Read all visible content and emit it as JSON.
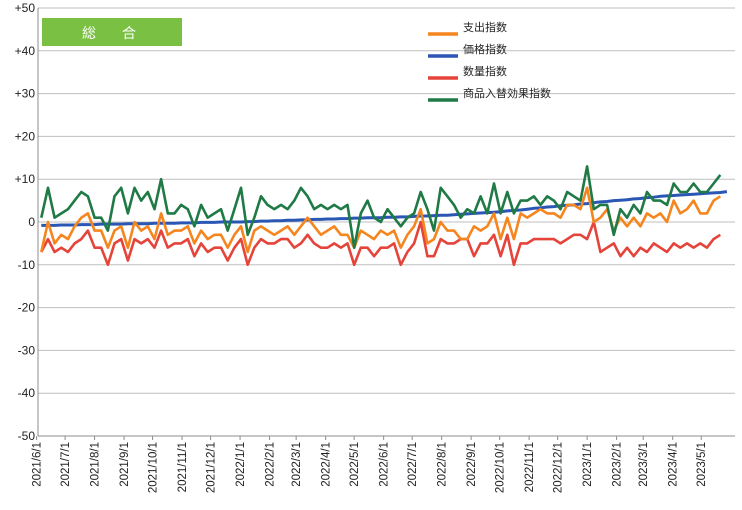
{
  "badge": {
    "label": "総　合",
    "color": "#7ac143"
  },
  "chart_data": {
    "type": "line",
    "ylim": [
      -50,
      50
    ],
    "yticks": [
      -50,
      -40,
      -30,
      -20,
      -10,
      0,
      10,
      20,
      30,
      40,
      50
    ],
    "ytick_labels": [
      "-50",
      "-40",
      "-30",
      "-20",
      "-10",
      "0",
      "+10",
      "+20",
      "+30",
      "+40",
      "+50"
    ],
    "grid": "horizontal",
    "legend_position": "top-right",
    "x_dates": [
      "2021-06-06",
      "2021-06-13",
      "2021-06-20",
      "2021-06-27",
      "2021-07-04",
      "2021-07-11",
      "2021-07-18",
      "2021-07-25",
      "2021-08-01",
      "2021-08-08",
      "2021-08-15",
      "2021-08-22",
      "2021-08-29",
      "2021-09-05",
      "2021-09-12",
      "2021-09-19",
      "2021-09-26",
      "2021-10-03",
      "2021-10-10",
      "2021-10-17",
      "2021-10-24",
      "2021-10-31",
      "2021-11-07",
      "2021-11-14",
      "2021-11-21",
      "2021-11-28",
      "2021-12-05",
      "2021-12-12",
      "2021-12-19",
      "2021-12-26",
      "2022-01-02",
      "2022-01-09",
      "2022-01-16",
      "2022-01-23",
      "2022-01-30",
      "2022-02-06",
      "2022-02-13",
      "2022-02-20",
      "2022-02-27",
      "2022-03-06",
      "2022-03-13",
      "2022-03-20",
      "2022-03-27",
      "2022-04-03",
      "2022-04-10",
      "2022-04-17",
      "2022-04-24",
      "2022-05-01",
      "2022-05-08",
      "2022-05-15",
      "2022-05-22",
      "2022-05-29",
      "2022-06-05",
      "2022-06-12",
      "2022-06-19",
      "2022-06-26",
      "2022-07-03",
      "2022-07-10",
      "2022-07-17",
      "2022-07-24",
      "2022-07-31",
      "2022-08-07",
      "2022-08-14",
      "2022-08-21",
      "2022-08-28",
      "2022-09-04",
      "2022-09-11",
      "2022-09-18",
      "2022-09-25",
      "2022-10-02",
      "2022-10-09",
      "2022-10-16",
      "2022-10-23",
      "2022-10-30",
      "2022-11-06",
      "2022-11-13",
      "2022-11-20",
      "2022-11-27",
      "2022-12-04",
      "2022-12-11",
      "2022-12-18",
      "2022-12-25",
      "2023-01-01",
      "2023-01-08",
      "2023-01-15",
      "2023-01-22",
      "2023-01-29",
      "2023-02-05",
      "2023-02-12",
      "2023-02-19",
      "2023-02-26",
      "2023-03-05",
      "2023-03-12",
      "2023-03-19",
      "2023-03-26",
      "2023-04-02",
      "2023-04-09",
      "2023-04-16",
      "2023-04-23",
      "2023-04-30",
      "2023-05-07",
      "2023-05-14",
      "2023-05-21",
      "2023-05-28",
      "2023-06-04"
    ],
    "x_tick_labels": [
      "2021/6/1",
      "2021/7/1",
      "2021/8/1",
      "2021/9/1",
      "2021/10/1",
      "2021/11/1",
      "2021/12/1",
      "2022/1/1",
      "2022/2/1",
      "2022/3/1",
      "2022/4/1",
      "2022/5/1",
      "2022/6/1",
      "2022/7/1",
      "2022/8/1",
      "2022/9/1",
      "2022/10/1",
      "2022/11/1",
      "2022/12/1",
      "2023/1/1",
      "2023/2/1",
      "2023/3/1",
      "2023/4/1",
      "2023/5/1"
    ],
    "series": [
      {
        "name": "支出指数",
        "color": "#f5861f",
        "values": [
          -7,
          0,
          -5,
          -3,
          -4,
          -1,
          1,
          2,
          -2,
          -2,
          -6,
          -2,
          -1,
          -6,
          0,
          -2,
          -1,
          -4,
          2,
          -3,
          -2,
          -2,
          -1,
          -5,
          -2,
          -4,
          -3,
          -3,
          -6,
          -3,
          -1,
          -7,
          -2,
          -1,
          -2,
          -3,
          -2,
          -1,
          -3,
          -1,
          1,
          -1,
          -3,
          -2,
          -1,
          -3,
          -3,
          -6,
          -2,
          -3,
          -4,
          -2,
          -3,
          -2,
          -6,
          -3,
          -1,
          3,
          -5,
          -4,
          0,
          -2,
          -2,
          -4,
          -4,
          -1,
          -2,
          -1,
          2,
          -4,
          1,
          -4,
          2,
          1,
          2,
          3,
          2,
          2,
          1,
          4,
          4,
          3,
          8,
          0,
          1,
          3,
          -2,
          1,
          -1,
          1,
          -1,
          2,
          1,
          2,
          0,
          5,
          2,
          3,
          5,
          2,
          2,
          5,
          6
        ]
      },
      {
        "name": "価格指数",
        "color": "#2a57b4",
        "values": [
          -0.8,
          -0.8,
          -0.8,
          -0.7,
          -0.7,
          -0.7,
          -0.6,
          -0.6,
          -0.6,
          -0.5,
          -0.5,
          -0.5,
          -0.5,
          -0.4,
          -0.4,
          -0.4,
          -0.4,
          -0.3,
          -0.3,
          -0.3,
          -0.3,
          -0.2,
          -0.2,
          -0.2,
          -0.1,
          -0.1,
          -0.1,
          0,
          0,
          0,
          0,
          0.1,
          0.1,
          0.2,
          0.2,
          0.3,
          0.3,
          0.4,
          0.4,
          0.5,
          0.5,
          0.6,
          0.6,
          0.7,
          0.7,
          0.8,
          0.8,
          0.9,
          0.9,
          1,
          1,
          1,
          1.1,
          1.1,
          1.2,
          1.2,
          1.3,
          1.4,
          1.4,
          1.5,
          1.6,
          1.6,
          1.7,
          1.8,
          1.9,
          2,
          2.1,
          2.2,
          2.3,
          2.4,
          2.6,
          2.7,
          2.8,
          3,
          3.2,
          3.3,
          3.5,
          3.6,
          3.8,
          3.9,
          4,
          4.2,
          4.3,
          4.5,
          4.7,
          4.8,
          5,
          5.1,
          5.2,
          5.4,
          5.5,
          5.7,
          5.8,
          6,
          6.1,
          6.2,
          6.3,
          6.4,
          6.5,
          6.6,
          6.7,
          6.8,
          6.9,
          7.1
        ]
      },
      {
        "name": "数量指数",
        "color": "#e5443a",
        "values": [
          -7,
          -4,
          -7,
          -6,
          -7,
          -5,
          -4,
          -2,
          -6,
          -6,
          -10,
          -5,
          -4,
          -9,
          -4,
          -5,
          -4,
          -6,
          -2,
          -6,
          -5,
          -5,
          -4,
          -8,
          -5,
          -7,
          -6,
          -6,
          -9,
          -6,
          -4,
          -10,
          -6,
          -4,
          -5,
          -5,
          -4,
          -4,
          -6,
          -5,
          -3,
          -5,
          -6,
          -6,
          -5,
          -6,
          -5,
          -10,
          -6,
          -6,
          -8,
          -6,
          -6,
          -5,
          -10,
          -7,
          -5,
          0,
          -8,
          -8,
          -4,
          -5,
          -5,
          -4,
          -4,
          -8,
          -5,
          -5,
          -3,
          -8,
          -3,
          -10,
          -5,
          -5,
          -4,
          -4,
          -4,
          -4,
          -5,
          -4,
          -3,
          -3,
          -4,
          0,
          -7,
          -6,
          -5,
          -8,
          -6,
          -8,
          -6,
          -7,
          -5,
          -6,
          -7,
          -5,
          -6,
          -5,
          -6,
          -5,
          -6,
          -4,
          -3
        ]
      },
      {
        "name": "商品入替効果指数",
        "color": "#1f7a45",
        "values": [
          1,
          8,
          1,
          2,
          3,
          5,
          7,
          6,
          1,
          1,
          -2,
          6,
          8,
          2,
          8,
          5,
          7,
          3,
          10,
          2,
          2,
          4,
          3,
          -1,
          4,
          1,
          2,
          3,
          -2,
          3,
          8,
          -3,
          1,
          6,
          4,
          3,
          4,
          3,
          5,
          8,
          6,
          3,
          4,
          3,
          4,
          3,
          4,
          -6,
          2,
          5,
          1,
          0,
          3,
          1,
          -1,
          1,
          2,
          7,
          3,
          -2,
          8,
          6,
          4,
          1,
          3,
          2,
          6,
          2,
          9,
          2,
          7,
          2,
          5,
          5,
          6,
          4,
          6,
          5,
          3,
          7,
          6,
          5,
          13,
          3,
          4,
          4,
          -3,
          3,
          1,
          4,
          2,
          7,
          5,
          5,
          4,
          9,
          7,
          7,
          9,
          7,
          7,
          9,
          11
        ]
      }
    ]
  }
}
